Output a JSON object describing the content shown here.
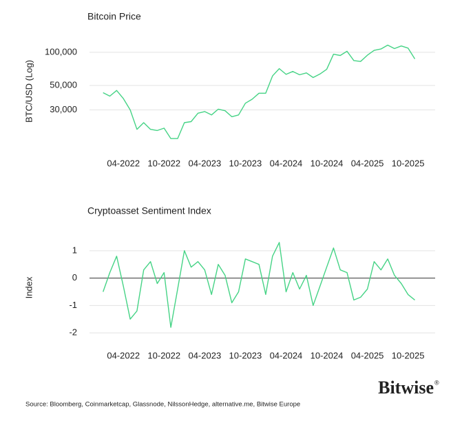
{
  "chart_data": [
    {
      "type": "line",
      "title": "Bitcoin Price",
      "y_label": "BTC/USD (Log)",
      "log_y": true,
      "grid": true,
      "xlim": [
        "2021-11",
        "2026-02"
      ],
      "xticks": [
        {
          "value": "2022-04",
          "label": "04-2022"
        },
        {
          "value": "2022-10",
          "label": "10-2022"
        },
        {
          "value": "2023-04",
          "label": "04-2023"
        },
        {
          "value": "2023-10",
          "label": "10-2023"
        },
        {
          "value": "2024-04",
          "label": "04-2024"
        },
        {
          "value": "2024-10",
          "label": "10-2024"
        },
        {
          "value": "2025-04",
          "label": "04-2025"
        },
        {
          "value": "2025-10",
          "label": "10-2025"
        }
      ],
      "ylim": [
        13500,
        145000
      ],
      "yticks": [
        {
          "value": 30000,
          "label": "30,000"
        },
        {
          "value": 50000,
          "label": "50,000"
        },
        {
          "value": 100000,
          "label": "100,000"
        }
      ],
      "x": [
        "2022-01",
        "2022-02",
        "2022-03",
        "2022-04",
        "2022-05",
        "2022-06",
        "2022-07",
        "2022-08",
        "2022-09",
        "2022-10",
        "2022-11",
        "2022-12",
        "2023-01",
        "2023-02",
        "2023-03",
        "2023-04",
        "2023-05",
        "2023-06",
        "2023-07",
        "2023-08",
        "2023-09",
        "2023-10",
        "2023-11",
        "2023-12",
        "2024-01",
        "2024-02",
        "2024-03",
        "2024-04",
        "2024-05",
        "2024-06",
        "2024-07",
        "2024-08",
        "2024-09",
        "2024-10",
        "2024-11",
        "2024-12",
        "2025-01",
        "2025-02",
        "2025-03",
        "2025-04",
        "2025-05",
        "2025-06",
        "2025-07",
        "2025-08",
        "2025-09",
        "2025-10",
        "2025-11"
      ],
      "series": [
        {
          "color": "#45d385",
          "values": [
            43000,
            40000,
            45000,
            38000,
            30000,
            20000,
            23000,
            20000,
            19500,
            20500,
            16500,
            16500,
            23000,
            23500,
            28000,
            29000,
            27000,
            30500,
            29500,
            26000,
            27000,
            34500,
            37500,
            42500,
            42500,
            61000,
            71000,
            63000,
            67000,
            62500,
            65000,
            59000,
            63500,
            70000,
            96000,
            93500,
            102000,
            84000,
            82500,
            94000,
            104000,
            107000,
            116000,
            108000,
            114000,
            109000,
            87000
          ]
        }
      ]
    },
    {
      "type": "line",
      "title": "Cryptoasset Sentiment Index",
      "y_label": "Index",
      "log_y": false,
      "grid": true,
      "zero_line": true,
      "xlim": [
        "2021-11",
        "2026-02"
      ],
      "xticks": [
        {
          "value": "2022-04",
          "label": "04-2022"
        },
        {
          "value": "2022-10",
          "label": "10-2022"
        },
        {
          "value": "2023-04",
          "label": "04-2023"
        },
        {
          "value": "2023-10",
          "label": "10-2023"
        },
        {
          "value": "2024-04",
          "label": "04-2024"
        },
        {
          "value": "2024-10",
          "label": "10-2024"
        },
        {
          "value": "2025-04",
          "label": "04-2025"
        },
        {
          "value": "2025-10",
          "label": "10-2025"
        }
      ],
      "ylim": [
        -2.3,
        1.6
      ],
      "yticks": [
        -2,
        -1,
        0,
        1
      ],
      "x": [
        "2022-01",
        "2022-02",
        "2022-03",
        "2022-04",
        "2022-05",
        "2022-06",
        "2022-07",
        "2022-08",
        "2022-09",
        "2022-10",
        "2022-11",
        "2022-12",
        "2023-01",
        "2023-02",
        "2023-03",
        "2023-04",
        "2023-05",
        "2023-06",
        "2023-07",
        "2023-08",
        "2023-09",
        "2023-10",
        "2023-11",
        "2023-12",
        "2024-01",
        "2024-02",
        "2024-03",
        "2024-04",
        "2024-05",
        "2024-06",
        "2024-07",
        "2024-08",
        "2024-09",
        "2024-10",
        "2024-11",
        "2024-12",
        "2025-01",
        "2025-02",
        "2025-03",
        "2025-04",
        "2025-05",
        "2025-06",
        "2025-07",
        "2025-08",
        "2025-09",
        "2025-10",
        "2025-11"
      ],
      "series": [
        {
          "color": "#45d385",
          "values": [
            -0.5,
            0.2,
            0.8,
            -0.3,
            -1.5,
            -1.2,
            0.3,
            0.6,
            -0.2,
            0.2,
            -1.8,
            -0.4,
            1.0,
            0.4,
            0.6,
            0.3,
            -0.6,
            0.5,
            0.1,
            -0.9,
            -0.5,
            0.7,
            0.6,
            0.5,
            -0.6,
            0.8,
            1.3,
            -0.5,
            0.2,
            -0.4,
            0.1,
            -1.0,
            -0.3,
            0.4,
            1.1,
            0.3,
            0.2,
            -0.8,
            -0.7,
            -0.4,
            0.6,
            0.3,
            0.7,
            0.1,
            -0.2,
            -0.6,
            -0.8
          ]
        }
      ]
    }
  ],
  "logo": "Bitwise",
  "logo_mark": "®",
  "source": "Source: Bloomberg, Coinmarketcap, Glassnode, NilssonHedge, alternative.me, Bitwise Europe"
}
